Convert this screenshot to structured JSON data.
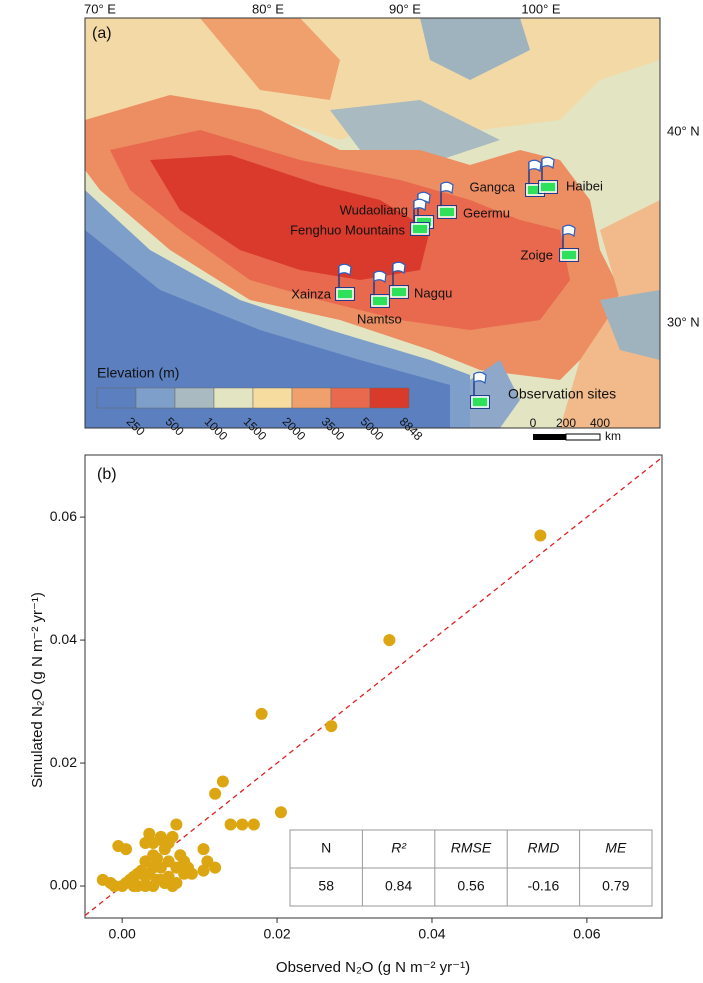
{
  "map": {
    "panel_label": "(a)",
    "lon_labels": [
      "70° E",
      "80° E",
      "90° E",
      "100° E"
    ],
    "lat_labels": [
      "40° N",
      "30° N"
    ],
    "sites": [
      "Gangca",
      "Haibei",
      "Wudaoliang",
      "Geermu",
      "Fenghuo Mountains",
      "Zoige",
      "Xainza",
      "Namtso",
      "Nagqu"
    ],
    "legend_title": "Elevation (m)",
    "elevation_ticks": [
      250,
      500,
      1000,
      1500,
      2000,
      3500,
      5000,
      8848
    ],
    "sites_legend": "Observation sites",
    "scale_labels": [
      "0",
      "200",
      "400",
      "km"
    ]
  },
  "chart_data": {
    "type": "scatter",
    "panel_label": "(b)",
    "x_label": "Observed N₂O (g N m⁻² yr⁻¹)",
    "y_label": "Simulated N₂O (g N m⁻² yr⁻¹)",
    "color": "#dca512",
    "xlim": [
      -0.0048,
      0.0697
    ],
    "ylim": [
      -0.0052,
      0.0701
    ],
    "xticks": [
      {
        "value": 0,
        "label": "0.00"
      },
      {
        "value": 0.02,
        "label": "0.02"
      },
      {
        "value": 0.04,
        "label": "0.04"
      },
      {
        "value": 0.06,
        "label": "0.06"
      }
    ],
    "yticks": [
      {
        "value": 0,
        "label": "0.00"
      },
      {
        "value": 0.02,
        "label": "0.02"
      },
      {
        "value": 0.04,
        "label": "0.04"
      },
      {
        "value": 0.06,
        "label": "0.06"
      }
    ],
    "x": [
      0.054,
      0.0345,
      0.018,
      0.027,
      0.0205,
      0.013,
      0.012,
      0.014,
      0.0155,
      0.017,
      0.0105,
      0.011,
      0.012,
      0.0105,
      0.007,
      0.0065,
      0.005,
      0.004,
      0.003,
      -0.0005,
      0.0005,
      -0.0025,
      -0.0015,
      -0.001,
      0,
      0.001,
      0.0015,
      0.002,
      0.002,
      0.003,
      0.0035,
      0.004,
      0.004,
      0.005,
      0.005,
      0.0055,
      0.006,
      0.006,
      0.0065,
      0.007,
      0.0075,
      0.008,
      0.008,
      0.009,
      0.003,
      0.0025,
      0.0045,
      0.006,
      0.007,
      0.0035,
      0.005,
      0.0045,
      0.0015,
      0.003,
      0.0055,
      0.0085,
      0.0005,
      0.004
    ],
    "y": [
      0.057,
      0.04,
      0.028,
      0.026,
      0.012,
      0.017,
      0.015,
      0.01,
      0.01,
      0.01,
      0.006,
      0.004,
      0.003,
      0.0025,
      0.01,
      0.008,
      0.008,
      0.007,
      0.007,
      0.0065,
      0.006,
      0.001,
      0.0005,
      0,
      0,
      0.001,
      0.0015,
      0.002,
      0,
      0.004,
      0.002,
      0.005,
      0,
      0.001,
      0.003,
      0.006,
      0.004,
      0.0015,
      0,
      0.003,
      0.005,
      0.002,
      0.004,
      0.002,
      0,
      0.0025,
      0.0045,
      0.007,
      0.0005,
      0.0085,
      0.0075,
      0.001,
      0,
      0.0015,
      0.0005,
      0.003,
      0.0005,
      0.003
    ],
    "table": {
      "header": [
        "N",
        "R²",
        "RMSE",
        "RMD",
        "ME"
      ],
      "rows": [
        [
          "58",
          "0.84",
          "0.56",
          "-0.16",
          "0.79"
        ]
      ]
    }
  }
}
